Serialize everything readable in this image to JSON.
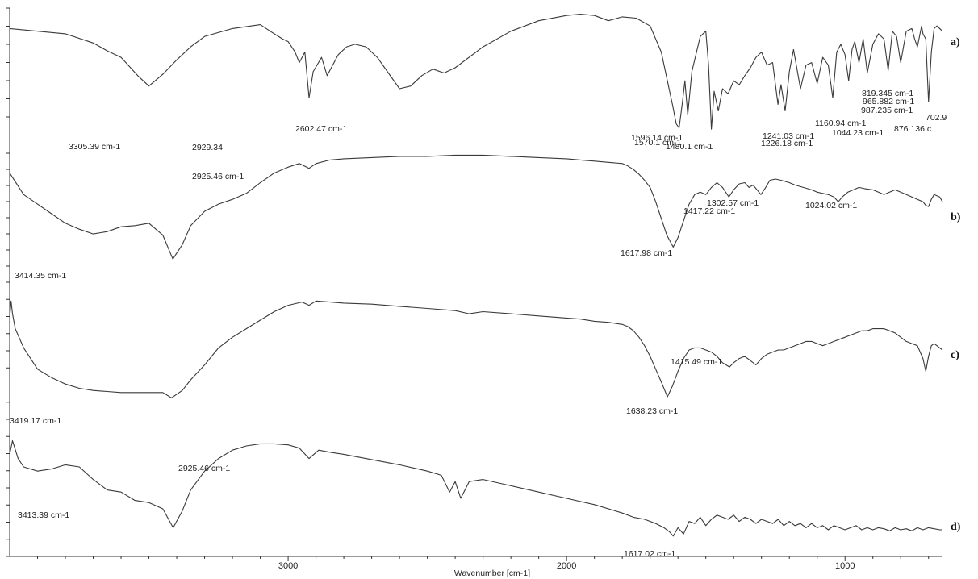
{
  "chart_data": {
    "type": "line",
    "description_axis": "wavenumber",
    "xlabel": "Wavenumber [cm-1]",
    "xlim": [
      4000,
      650
    ],
    "x_ticks": [
      3000,
      2000,
      1000
    ],
    "y_ticks_per_panel": 8,
    "grid": false,
    "series": [
      {
        "name": "a)",
        "x": [
          4000,
          3800,
          3700,
          3650,
          3600,
          3540,
          3500,
          3450,
          3400,
          3350,
          3300,
          3200,
          3100,
          3050,
          3020,
          3000,
          2975,
          2960,
          2940,
          2925,
          2910,
          2880,
          2860,
          2820,
          2790,
          2760,
          2720,
          2680,
          2640,
          2600,
          2560,
          2520,
          2480,
          2440,
          2400,
          2300,
          2200,
          2100,
          2000,
          1950,
          1900,
          1850,
          1800,
          1750,
          1700,
          1660,
          1640,
          1620,
          1606,
          1596,
          1585,
          1575,
          1565,
          1550,
          1520,
          1500,
          1490,
          1480,
          1470,
          1455,
          1440,
          1420,
          1400,
          1380,
          1360,
          1340,
          1320,
          1300,
          1280,
          1260,
          1241,
          1230,
          1215,
          1200,
          1185,
          1160,
          1140,
          1120,
          1100,
          1080,
          1060,
          1044,
          1030,
          1015,
          1000,
          987,
          975,
          965,
          950,
          935,
          920,
          900,
          880,
          860,
          845,
          830,
          815,
          800,
          780,
          760,
          750,
          740,
          725,
          720,
          710,
          700,
          690,
          680,
          670,
          650
        ],
        "y": [
          0.88,
          0.84,
          0.77,
          0.71,
          0.66,
          0.52,
          0.44,
          0.53,
          0.64,
          0.74,
          0.82,
          0.88,
          0.91,
          0.84,
          0.8,
          0.78,
          0.7,
          0.62,
          0.7,
          0.35,
          0.55,
          0.66,
          0.52,
          0.68,
          0.74,
          0.76,
          0.74,
          0.66,
          0.54,
          0.42,
          0.44,
          0.52,
          0.57,
          0.54,
          0.58,
          0.74,
          0.86,
          0.94,
          0.98,
          0.99,
          0.98,
          0.94,
          0.97,
          0.96,
          0.9,
          0.7,
          0.5,
          0.3,
          0.15,
          0.12,
          0.3,
          0.48,
          0.22,
          0.55,
          0.82,
          0.86,
          0.6,
          0.11,
          0.4,
          0.25,
          0.42,
          0.38,
          0.48,
          0.45,
          0.52,
          0.58,
          0.66,
          0.7,
          0.6,
          0.62,
          0.3,
          0.45,
          0.25,
          0.55,
          0.72,
          0.42,
          0.6,
          0.62,
          0.46,
          0.66,
          0.6,
          0.35,
          0.7,
          0.76,
          0.68,
          0.48,
          0.72,
          0.78,
          0.62,
          0.8,
          0.54,
          0.76,
          0.84,
          0.8,
          0.56,
          0.86,
          0.82,
          0.62,
          0.86,
          0.88,
          0.8,
          0.74,
          0.9,
          0.84,
          0.8,
          0.32,
          0.7,
          0.88,
          0.9,
          0.86
        ]
      },
      {
        "name": "b)",
        "x": [
          4000,
          3950,
          3900,
          3850,
          3800,
          3750,
          3700,
          3650,
          3600,
          3550,
          3500,
          3450,
          3414,
          3380,
          3350,
          3300,
          3250,
          3200,
          3150,
          3100,
          3050,
          3000,
          2960,
          2925,
          2900,
          2850,
          2800,
          2700,
          2600,
          2500,
          2400,
          2300,
          2200,
          2100,
          2000,
          1950,
          1900,
          1850,
          1800,
          1780,
          1760,
          1740,
          1720,
          1700,
          1680,
          1660,
          1640,
          1617,
          1600,
          1580,
          1560,
          1540,
          1520,
          1500,
          1480,
          1460,
          1440,
          1417,
          1400,
          1380,
          1360,
          1345,
          1330,
          1302,
          1285,
          1270,
          1250,
          1230,
          1200,
          1180,
          1150,
          1120,
          1100,
          1080,
          1060,
          1040,
          1024,
          1010,
          990,
          970,
          950,
          930,
          900,
          880,
          860,
          840,
          820,
          800,
          780,
          760,
          740,
          720,
          710,
          700,
          690,
          680,
          660,
          650
        ],
        "y": [
          0.82,
          0.64,
          0.56,
          0.48,
          0.4,
          0.35,
          0.31,
          0.33,
          0.37,
          0.38,
          0.4,
          0.3,
          0.1,
          0.22,
          0.38,
          0.5,
          0.56,
          0.6,
          0.65,
          0.74,
          0.82,
          0.87,
          0.9,
          0.86,
          0.9,
          0.93,
          0.94,
          0.95,
          0.96,
          0.96,
          0.97,
          0.97,
          0.96,
          0.95,
          0.94,
          0.93,
          0.92,
          0.91,
          0.9,
          0.88,
          0.85,
          0.81,
          0.76,
          0.7,
          0.58,
          0.44,
          0.3,
          0.2,
          0.28,
          0.42,
          0.56,
          0.64,
          0.66,
          0.64,
          0.7,
          0.74,
          0.7,
          0.62,
          0.68,
          0.73,
          0.74,
          0.7,
          0.72,
          0.64,
          0.7,
          0.76,
          0.77,
          0.76,
          0.74,
          0.72,
          0.7,
          0.68,
          0.66,
          0.65,
          0.64,
          0.62,
          0.58,
          0.62,
          0.66,
          0.68,
          0.7,
          0.69,
          0.68,
          0.66,
          0.64,
          0.66,
          0.68,
          0.66,
          0.64,
          0.62,
          0.6,
          0.58,
          0.55,
          0.54,
          0.6,
          0.64,
          0.62,
          0.58
        ]
      },
      {
        "name": "c)",
        "x": [
          4000,
          3995,
          3990,
          3980,
          3950,
          3920,
          3900,
          3850,
          3800,
          3750,
          3700,
          3650,
          3600,
          3550,
          3500,
          3450,
          3419,
          3380,
          3350,
          3300,
          3250,
          3200,
          3150,
          3100,
          3050,
          3000,
          2950,
          2925,
          2900,
          2850,
          2800,
          2700,
          2600,
          2500,
          2400,
          2350,
          2300,
          2200,
          2100,
          2000,
          1950,
          1900,
          1850,
          1800,
          1780,
          1760,
          1740,
          1720,
          1700,
          1680,
          1660,
          1638,
          1620,
          1600,
          1580,
          1560,
          1540,
          1520,
          1500,
          1480,
          1460,
          1440,
          1415,
          1400,
          1380,
          1360,
          1340,
          1320,
          1300,
          1280,
          1260,
          1240,
          1220,
          1200,
          1180,
          1160,
          1140,
          1120,
          1100,
          1080,
          1060,
          1040,
          1020,
          1000,
          980,
          960,
          940,
          920,
          900,
          880,
          860,
          840,
          820,
          800,
          780,
          760,
          740,
          720,
          710,
          700,
          690,
          680,
          670,
          660,
          650
        ],
        "y": [
          0.8,
          0.96,
          0.84,
          0.7,
          0.52,
          0.4,
          0.32,
          0.24,
          0.18,
          0.14,
          0.12,
          0.11,
          0.1,
          0.1,
          0.1,
          0.1,
          0.05,
          0.12,
          0.22,
          0.36,
          0.52,
          0.62,
          0.7,
          0.78,
          0.86,
          0.92,
          0.95,
          0.92,
          0.96,
          0.95,
          0.94,
          0.93,
          0.91,
          0.89,
          0.87,
          0.84,
          0.86,
          0.84,
          0.82,
          0.8,
          0.79,
          0.77,
          0.76,
          0.74,
          0.72,
          0.68,
          0.62,
          0.54,
          0.44,
          0.32,
          0.2,
          0.06,
          0.16,
          0.3,
          0.42,
          0.5,
          0.52,
          0.52,
          0.5,
          0.48,
          0.44,
          0.38,
          0.34,
          0.38,
          0.42,
          0.44,
          0.4,
          0.36,
          0.42,
          0.46,
          0.48,
          0.5,
          0.5,
          0.52,
          0.54,
          0.56,
          0.58,
          0.58,
          0.56,
          0.54,
          0.56,
          0.58,
          0.6,
          0.62,
          0.64,
          0.66,
          0.68,
          0.68,
          0.7,
          0.7,
          0.7,
          0.68,
          0.66,
          0.62,
          0.58,
          0.56,
          0.54,
          0.42,
          0.3,
          0.44,
          0.54,
          0.56,
          0.54,
          0.52,
          0.5
        ]
      },
      {
        "name": "d)",
        "x": [
          4000,
          3990,
          3970,
          3950,
          3900,
          3850,
          3800,
          3750,
          3700,
          3650,
          3600,
          3550,
          3500,
          3450,
          3413,
          3380,
          3350,
          3300,
          3250,
          3200,
          3150,
          3100,
          3050,
          3000,
          2960,
          2925,
          2890,
          2850,
          2800,
          2700,
          2600,
          2500,
          2450,
          2420,
          2400,
          2380,
          2350,
          2300,
          2200,
          2100,
          2000,
          1900,
          1800,
          1760,
          1720,
          1680,
          1650,
          1630,
          1617,
          1600,
          1580,
          1560,
          1540,
          1520,
          1500,
          1480,
          1460,
          1440,
          1420,
          1400,
          1380,
          1360,
          1340,
          1320,
          1300,
          1280,
          1260,
          1240,
          1220,
          1200,
          1180,
          1160,
          1140,
          1120,
          1100,
          1080,
          1060,
          1040,
          1020,
          1000,
          980,
          960,
          940,
          920,
          900,
          880,
          860,
          840,
          820,
          800,
          780,
          760,
          740,
          720,
          700,
          680,
          660,
          650
        ],
        "y": [
          0.82,
          0.95,
          0.78,
          0.7,
          0.66,
          0.68,
          0.72,
          0.7,
          0.58,
          0.48,
          0.46,
          0.38,
          0.36,
          0.3,
          0.12,
          0.28,
          0.48,
          0.66,
          0.78,
          0.86,
          0.9,
          0.92,
          0.92,
          0.91,
          0.88,
          0.78,
          0.86,
          0.84,
          0.82,
          0.77,
          0.72,
          0.66,
          0.62,
          0.46,
          0.56,
          0.4,
          0.56,
          0.58,
          0.52,
          0.46,
          0.4,
          0.34,
          0.26,
          0.22,
          0.2,
          0.16,
          0.12,
          0.08,
          0.04,
          0.12,
          0.06,
          0.18,
          0.16,
          0.22,
          0.14,
          0.2,
          0.24,
          0.22,
          0.2,
          0.24,
          0.18,
          0.22,
          0.2,
          0.16,
          0.2,
          0.18,
          0.16,
          0.2,
          0.14,
          0.18,
          0.14,
          0.16,
          0.12,
          0.16,
          0.12,
          0.14,
          0.1,
          0.14,
          0.12,
          0.1,
          0.12,
          0.14,
          0.1,
          0.12,
          0.1,
          0.12,
          0.11,
          0.09,
          0.12,
          0.1,
          0.11,
          0.09,
          0.12,
          0.1,
          0.12,
          0.11,
          0.1,
          0.1
        ]
      }
    ],
    "peak_labels": [
      {
        "series": 0,
        "text": "3305.39 cm-1"
      },
      {
        "series": 0,
        "text": "2929.34"
      },
      {
        "series": 0,
        "text": "2602.47 cm-1"
      },
      {
        "series": 0,
        "text": "1596.14 cm-1"
      },
      {
        "series": 0,
        "text": "1570.1 cm-1"
      },
      {
        "series": 0,
        "text": "1480.1 cm-1"
      },
      {
        "series": 0,
        "text": "1241.03 cm-1"
      },
      {
        "series": 0,
        "text": "1226.18 cm-1"
      },
      {
        "series": 0,
        "text": "1160.94 cm-1"
      },
      {
        "series": 0,
        "text": "1044.23 cm-1"
      },
      {
        "series": 0,
        "text": "987.235 cm-1"
      },
      {
        "series": 0,
        "text": "965.882 cm-1"
      },
      {
        "series": 0,
        "text": "819.345 cm-1"
      },
      {
        "series": 0,
        "text": "876.136 c"
      },
      {
        "series": 0,
        "text": "702.9"
      },
      {
        "series": 1,
        "text": "2925.46 cm-1"
      },
      {
        "series": 1,
        "text": "3414.35 cm-1"
      },
      {
        "series": 1,
        "text": "1617.98 cm-1"
      },
      {
        "series": 1,
        "text": "1417.22 cm-1"
      },
      {
        "series": 1,
        "text": "1302.57 cm-1"
      },
      {
        "series": 1,
        "text": "1024.02 cm-1"
      },
      {
        "series": 2,
        "text": "3419.17 cm-1"
      },
      {
        "series": 2,
        "text": "1638.23 cm-1"
      },
      {
        "series": 2,
        "text": "1415.49 cm-1"
      },
      {
        "series": 3,
        "text": "2925.46 cm-1"
      },
      {
        "series": 3,
        "text": "3413.39 cm-1"
      },
      {
        "series": 3,
        "text": "1617.02 cm-1"
      }
    ],
    "line_color": "#3a3a3a"
  }
}
